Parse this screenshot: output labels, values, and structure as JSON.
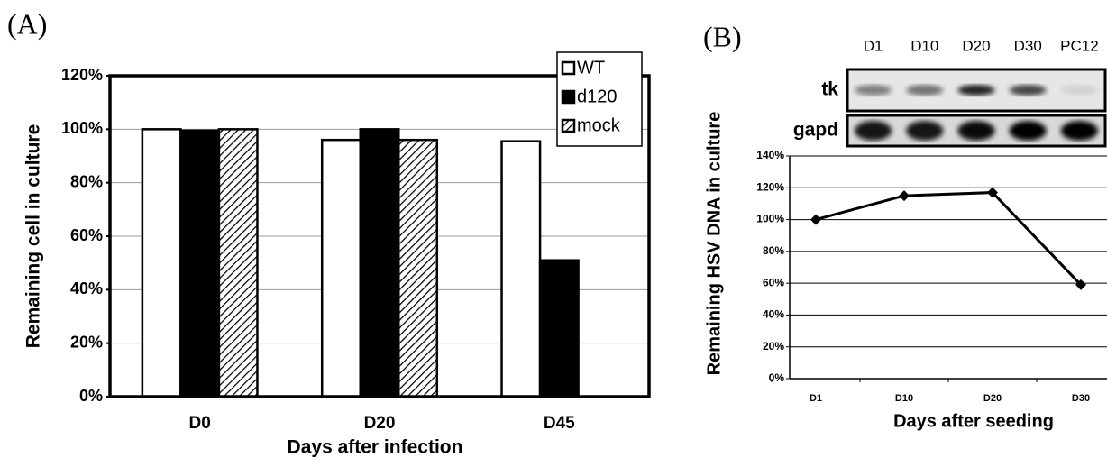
{
  "chart_data": [
    {
      "type": "bar",
      "panel_label": "(A)",
      "x_label": "Days after infection",
      "y_label": "Remaining cell in culture",
      "categories": [
        "D0",
        "D20",
        "D45"
      ],
      "series": [
        {
          "name": "WT",
          "color": "#ffffff",
          "values": [
            100,
            96,
            95.5
          ]
        },
        {
          "name": "d120",
          "color": "#000000",
          "values": [
            99.5,
            100,
            51
          ]
        },
        {
          "name": "mock",
          "color": "#ffffff",
          "hatch": true,
          "values": [
            100,
            96,
            0
          ]
        }
      ],
      "ylim": [
        0,
        120
      ],
      "yticks": [
        {
          "value": 0,
          "label": "0%"
        },
        {
          "value": 20,
          "label": "20%"
        },
        {
          "value": 40,
          "label": "40%"
        },
        {
          "value": 60,
          "label": "60%"
        },
        {
          "value": 80,
          "label": "80%"
        },
        {
          "value": 100,
          "label": "100%"
        },
        {
          "value": 120,
          "label": "120%"
        }
      ],
      "grid": true,
      "legend": "upper right"
    },
    {
      "type": "line",
      "panel_label": "(B)",
      "x_label": "Days after seeding",
      "y_label": "Remaining HSV DNA in culture",
      "gel": {
        "lanes": [
          "D1",
          "D10",
          "D20",
          "D30",
          "PC12"
        ],
        "rows": [
          "tk",
          "gapd"
        ]
      },
      "categories": [
        "D1",
        "D10",
        "D20",
        "D30"
      ],
      "values": [
        100,
        115,
        117,
        59
      ],
      "color": "#000000",
      "ylim": [
        0,
        140
      ],
      "yticks": [
        {
          "value": 0,
          "label": "0%"
        },
        {
          "value": 20,
          "label": "20%"
        },
        {
          "value": 40,
          "label": "40%"
        },
        {
          "value": 60,
          "label": "60%"
        },
        {
          "value": 80,
          "label": "80%"
        },
        {
          "value": 100,
          "label": "100%"
        },
        {
          "value": 120,
          "label": "120%"
        },
        {
          "value": 140,
          "label": "140%"
        }
      ],
      "grid": true
    }
  ]
}
